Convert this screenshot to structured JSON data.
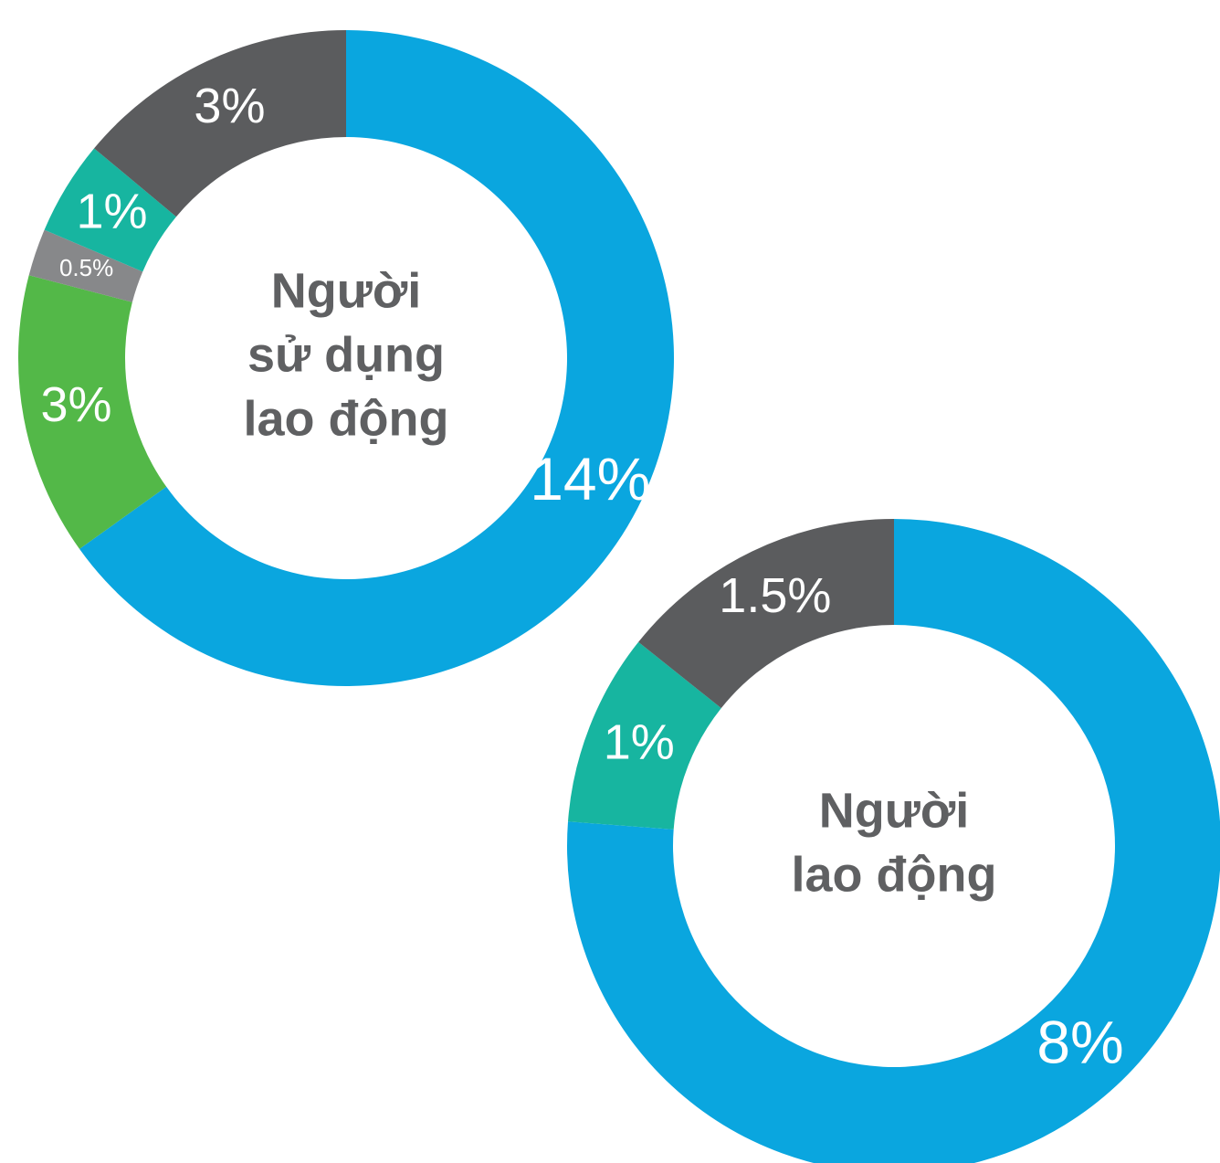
{
  "chart_data": [
    {
      "type": "donut",
      "center_label": [
        "Người",
        "sử dụng",
        "lao động"
      ],
      "values": [
        14,
        3,
        0.5,
        1,
        3
      ],
      "value_labels": [
        "14%",
        "3%",
        "0.5%",
        "1%",
        "3%"
      ],
      "colors": [
        "#0aa6df",
        "#53b848",
        "#87888a",
        "#17b5a0",
        "#5b5c5e"
      ]
    },
    {
      "type": "donut",
      "center_label": [
        "Người",
        "lao động"
      ],
      "values": [
        8,
        1,
        1.5
      ],
      "value_labels": [
        "8%",
        "1%",
        "1.5%"
      ],
      "colors": [
        "#0aa6df",
        "#17b5a0",
        "#5b5c5e"
      ]
    }
  ]
}
